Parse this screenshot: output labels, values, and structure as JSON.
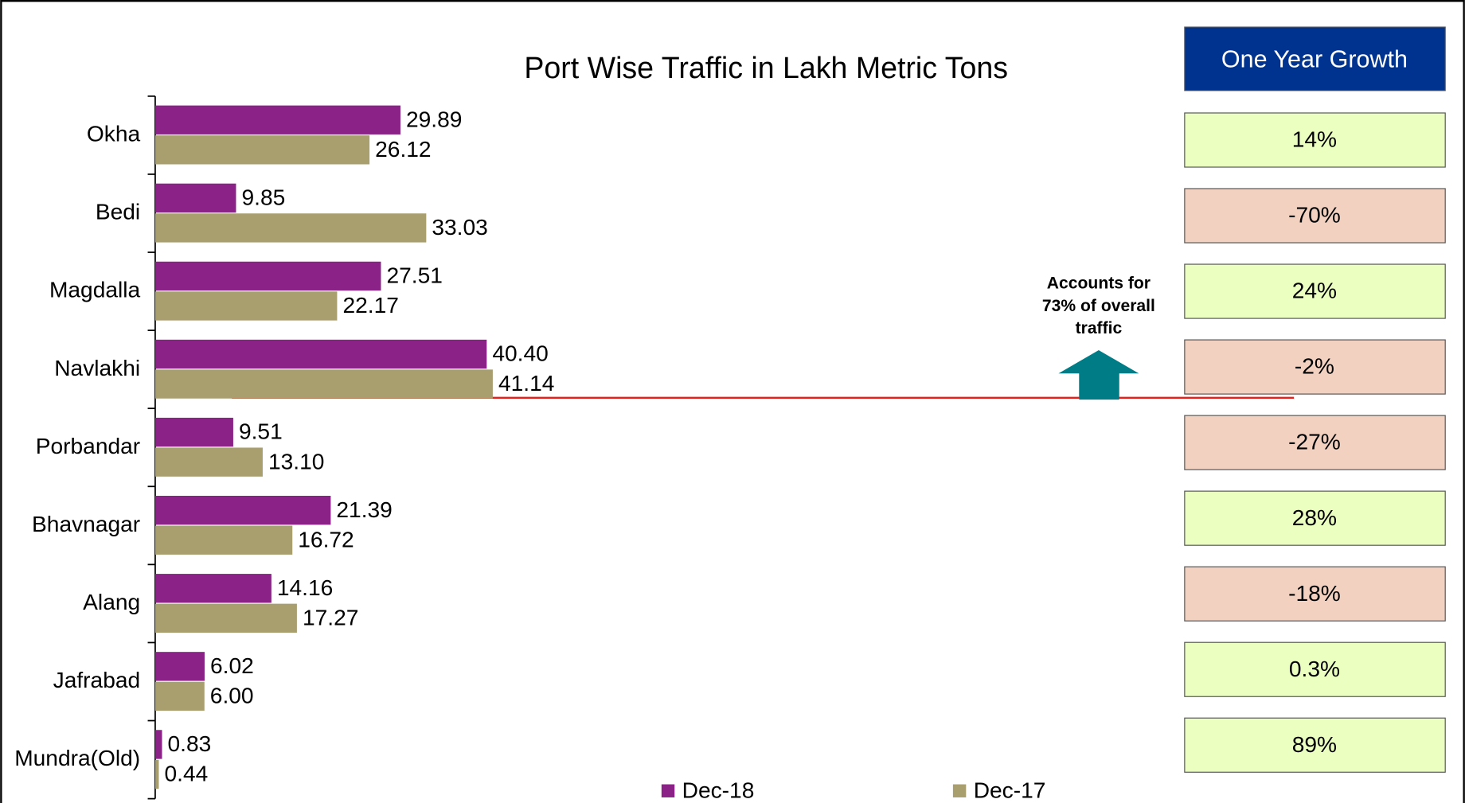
{
  "chart_data": {
    "type": "barh",
    "title": "Port Wise Traffic in Lakh Metric Tons",
    "categories": [
      "Okha",
      "Bedi",
      "Magdalla",
      "Navlakhi",
      "Porbandar",
      "Bhavnagar",
      "Alang",
      "Jafrabad",
      "Mundra(Old)"
    ],
    "series": [
      {
        "name": "Dec-18",
        "color": "#8b2288",
        "values": [
          29.89,
          9.85,
          27.51,
          40.4,
          9.51,
          21.39,
          14.16,
          6.02,
          0.83
        ],
        "value_labels": [
          "29.89",
          "9.85",
          "27.51",
          "40.40",
          "9.51",
          "21.39",
          "14.16",
          "6.02",
          "0.83"
        ]
      },
      {
        "name": "Dec-17",
        "color": "#a89e6e",
        "values": [
          26.12,
          33.03,
          22.17,
          41.14,
          13.1,
          16.72,
          17.27,
          6,
          0.44
        ],
        "value_labels": [
          "26.12",
          "33.03",
          "22.17",
          "41.14",
          "13.10",
          "16.72",
          "17.27",
          "6.00",
          "0.44"
        ]
      }
    ],
    "xlim": [
      0,
      125
    ],
    "annotation": "Accounts for 73% of overall traffic"
  },
  "growth": {
    "header": "One Year Growth",
    "items": [
      {
        "label": "14%",
        "color": "#ebffc1"
      },
      {
        "label": "-70%",
        "color": "#f2d1c0"
      },
      {
        "label": "24%",
        "color": "#ebffc1"
      },
      {
        "label": "-2%",
        "color": "#f2d1c0"
      },
      {
        "label": "-27%",
        "color": "#f2d1c0"
      },
      {
        "label": "28%",
        "color": "#ebffc1"
      },
      {
        "label": "-18%",
        "color": "#f2d1c0"
      },
      {
        "label": "0.3%",
        "color": "#ebffc1"
      },
      {
        "label": "89%",
        "color": "#ebffc1"
      }
    ]
  }
}
